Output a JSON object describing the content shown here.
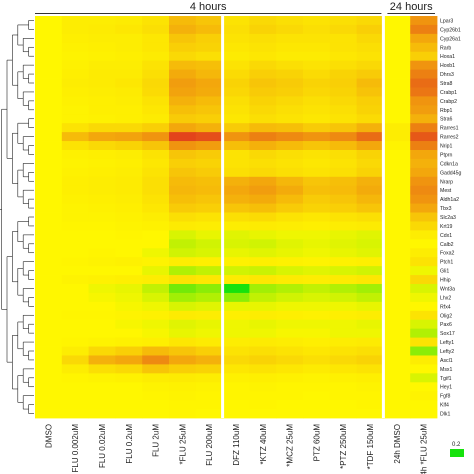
{
  "chart_data": {
    "type": "heatmap",
    "groups": [
      {
        "label": "4 hours",
        "columns": [
          "DMSO",
          "FLU 0.002uM",
          "FLU 0.02uM",
          "FLU 0.2uM",
          "FLU 2uM",
          "*FLU 25uM",
          "FLU 200uM",
          "DFZ 110uM",
          "*KTZ 40uM",
          "*MCZ 25uM",
          "PTZ 60uM",
          "*PTZ 250uM",
          "*TDF 150uM"
        ]
      },
      {
        "label": "24 hours",
        "columns": [
          "24h DMSO",
          "24h *FLU 25uM"
        ]
      }
    ],
    "columns": [
      "DMSO",
      "FLU 0.002uM",
      "FLU 0.02uM",
      "FLU 0.2uM",
      "FLU 2uM",
      "*FLU 25uM",
      "FLU 200uM",
      "DFZ 110uM",
      "*KTZ 40uM",
      "*MCZ 25uM",
      "PTZ 60uM",
      "*PTZ 250uM",
      "*TDF 150uM",
      "24h DMSO",
      "24h *FLU 25uM"
    ],
    "row_labels": [
      "Lpar3",
      "Cyp26b1",
      "Cyp26a1",
      "Rarb",
      "Hoxa1",
      "Hoxb1",
      "Dhrs3",
      "Stra8",
      "Crabp1",
      "Crabp2",
      "Rbp1",
      "Stra6",
      "Rarres1",
      "Rarres2",
      "Nrip1",
      "Ptprn",
      "Cdkn1a",
      "Gadd45g",
      "Nrarp",
      "Mest",
      "Aldh1a2",
      "Tbx3",
      "Slc2a3",
      "Krt19",
      "Cdx1",
      "Calb2",
      "Foxa2",
      "Ptch1",
      "Gli1",
      "Hhip",
      "Wnt3a",
      "Lhx2",
      "Rfx4",
      "Olig2",
      "Pax6",
      "Sox17",
      "Lefty1",
      "Lefty2",
      "Ascl1",
      "Msx1",
      "Tgif1",
      "Hey1",
      "Fgf8",
      "Klf4",
      "Dlk1"
    ],
    "legend": {
      "value_label": "0.2",
      "low_color": "#16e20d",
      "mid_color": "#fff700",
      "high_color": "#e0301e"
    },
    "values": [
      [
        0.0,
        0.05,
        0.05,
        0.06,
        0.1,
        0.3,
        0.25,
        0.1,
        0.15,
        0.12,
        0.1,
        0.12,
        0.15,
        0.0,
        0.5
      ],
      [
        0.0,
        0.05,
        0.06,
        0.08,
        0.12,
        0.35,
        0.3,
        0.12,
        0.18,
        0.15,
        0.12,
        0.15,
        0.2,
        0.0,
        0.6
      ],
      [
        0.0,
        0.04,
        0.05,
        0.05,
        0.08,
        0.25,
        0.2,
        0.1,
        0.12,
        0.1,
        0.1,
        0.1,
        0.15,
        0.0,
        0.4
      ],
      [
        0.0,
        0.03,
        0.04,
        0.05,
        0.08,
        0.2,
        0.18,
        0.08,
        0.1,
        0.08,
        0.08,
        0.1,
        0.12,
        0.0,
        0.3
      ],
      [
        0.0,
        0.02,
        0.03,
        0.04,
        0.06,
        0.15,
        0.12,
        0.06,
        0.08,
        0.06,
        0.06,
        0.08,
        0.1,
        0.0,
        0.2
      ],
      [
        0.0,
        0.03,
        0.05,
        0.05,
        0.1,
        0.3,
        0.28,
        0.1,
        0.15,
        0.12,
        0.1,
        0.12,
        0.15,
        0.0,
        0.5
      ],
      [
        0.0,
        0.04,
        0.06,
        0.06,
        0.12,
        0.38,
        0.32,
        0.14,
        0.2,
        0.18,
        0.14,
        0.18,
        0.22,
        0.0,
        0.6
      ],
      [
        0.0,
        0.05,
        0.06,
        0.08,
        0.15,
        0.45,
        0.4,
        0.18,
        0.25,
        0.22,
        0.18,
        0.2,
        0.3,
        0.0,
        0.7
      ],
      [
        0.0,
        0.04,
        0.05,
        0.06,
        0.14,
        0.42,
        0.38,
        0.16,
        0.22,
        0.2,
        0.16,
        0.18,
        0.26,
        0.0,
        0.65
      ],
      [
        0.0,
        0.03,
        0.04,
        0.05,
        0.1,
        0.35,
        0.3,
        0.12,
        0.18,
        0.15,
        0.12,
        0.15,
        0.2,
        0.0,
        0.5
      ],
      [
        0.0,
        0.02,
        0.04,
        0.04,
        0.08,
        0.28,
        0.25,
        0.1,
        0.15,
        0.12,
        0.1,
        0.12,
        0.18,
        0.0,
        0.45
      ],
      [
        0.0,
        0.02,
        0.03,
        0.04,
        0.06,
        0.22,
        0.2,
        0.08,
        0.12,
        0.1,
        0.08,
        0.1,
        0.14,
        0.0,
        0.35
      ],
      [
        0.0,
        0.1,
        0.15,
        0.15,
        0.2,
        0.4,
        0.35,
        0.22,
        0.3,
        0.28,
        0.22,
        0.25,
        0.35,
        0.05,
        0.6
      ],
      [
        0.0,
        0.3,
        0.4,
        0.42,
        0.5,
        0.9,
        0.85,
        0.5,
        0.6,
        0.55,
        0.5,
        0.55,
        0.7,
        0.05,
        0.8
      ],
      [
        0.0,
        0.1,
        0.15,
        0.18,
        0.25,
        0.5,
        0.45,
        0.28,
        0.35,
        0.3,
        0.25,
        0.3,
        0.4,
        0.02,
        0.6
      ],
      [
        0.0,
        0.03,
        0.04,
        0.05,
        0.1,
        0.25,
        0.22,
        0.1,
        0.15,
        0.12,
        0.1,
        0.12,
        0.18,
        0.0,
        0.4
      ],
      [
        0.0,
        0.02,
        0.03,
        0.04,
        0.08,
        0.2,
        0.18,
        0.1,
        0.12,
        0.1,
        0.08,
        0.1,
        0.15,
        0.0,
        0.35
      ],
      [
        0.0,
        0.03,
        0.04,
        0.05,
        0.1,
        0.25,
        0.22,
        0.12,
        0.15,
        0.12,
        0.1,
        0.12,
        0.18,
        0.0,
        0.4
      ],
      [
        0.0,
        0.04,
        0.05,
        0.06,
        0.12,
        0.3,
        0.28,
        0.35,
        0.4,
        0.32,
        0.25,
        0.28,
        0.35,
        0.0,
        0.5
      ],
      [
        0.0,
        0.04,
        0.05,
        0.06,
        0.12,
        0.32,
        0.3,
        0.4,
        0.45,
        0.38,
        0.28,
        0.3,
        0.38,
        0.0,
        0.55
      ],
      [
        0.0,
        0.03,
        0.04,
        0.05,
        0.1,
        0.28,
        0.25,
        0.35,
        0.38,
        0.3,
        0.22,
        0.25,
        0.32,
        0.0,
        0.5
      ],
      [
        0.0,
        0.02,
        0.03,
        0.04,
        0.08,
        0.22,
        0.2,
        0.25,
        0.28,
        0.22,
        0.18,
        0.2,
        0.25,
        0.0,
        0.4
      ],
      [
        0.0,
        0.02,
        0.02,
        0.03,
        0.05,
        0.12,
        0.1,
        0.12,
        0.14,
        0.1,
        0.08,
        0.1,
        0.12,
        0.0,
        0.25
      ],
      [
        0.0,
        0.01,
        0.01,
        0.02,
        0.03,
        0.06,
        0.05,
        0.05,
        0.06,
        0.05,
        0.04,
        0.05,
        0.06,
        0.0,
        0.15
      ],
      [
        0.0,
        0.0,
        0.0,
        0.01,
        0.0,
        -0.05,
        -0.03,
        -0.04,
        -0.03,
        -0.02,
        -0.02,
        -0.03,
        -0.04,
        0.0,
        0.05
      ],
      [
        0.0,
        0.0,
        0.0,
        0.0,
        0.0,
        -0.08,
        -0.06,
        -0.05,
        -0.06,
        -0.04,
        -0.03,
        -0.04,
        -0.05,
        0.0,
        0.0
      ],
      [
        0.0,
        0.0,
        0.01,
        0.0,
        -0.02,
        -0.06,
        -0.05,
        -0.03,
        -0.04,
        -0.03,
        -0.02,
        -0.03,
        -0.04,
        0.0,
        0.05
      ],
      [
        0.0,
        0.01,
        0.02,
        0.03,
        0.02,
        0.05,
        0.04,
        0.03,
        0.04,
        0.03,
        0.02,
        0.03,
        0.04,
        0.0,
        0.1
      ],
      [
        0.0,
        0.0,
        0.0,
        0.0,
        -0.03,
        -0.1,
        -0.08,
        -0.06,
        -0.07,
        -0.05,
        -0.04,
        -0.05,
        -0.06,
        0.0,
        -0.02
      ],
      [
        0.0,
        0.02,
        0.03,
        0.04,
        0.05,
        0.1,
        0.08,
        0.06,
        0.08,
        0.06,
        0.05,
        0.06,
        0.08,
        0.0,
        0.15
      ],
      [
        0.0,
        0.0,
        -0.02,
        -0.03,
        -0.08,
        -0.18,
        -0.15,
        -0.3,
        -0.12,
        -0.1,
        -0.08,
        -0.1,
        -0.12,
        0.0,
        -0.05
      ],
      [
        0.0,
        0.0,
        -0.01,
        -0.02,
        -0.05,
        -0.12,
        -0.1,
        -0.15,
        -0.08,
        -0.06,
        -0.05,
        -0.06,
        -0.08,
        0.0,
        -0.02
      ],
      [
        0.0,
        0.0,
        0.0,
        -0.01,
        -0.02,
        -0.05,
        -0.04,
        -0.03,
        -0.03,
        -0.02,
        -0.02,
        -0.02,
        -0.03,
        0.0,
        0.0
      ],
      [
        0.0,
        0.01,
        0.01,
        0.02,
        0.03,
        0.06,
        0.05,
        0.04,
        0.05,
        0.04,
        0.03,
        0.04,
        0.05,
        0.0,
        0.1
      ],
      [
        0.0,
        0.0,
        0.0,
        -0.01,
        -0.02,
        -0.04,
        -0.03,
        -0.02,
        -0.03,
        -0.02,
        -0.02,
        -0.02,
        -0.03,
        0.0,
        -0.05
      ],
      [
        0.0,
        0.0,
        0.0,
        0.0,
        -0.01,
        -0.03,
        -0.02,
        -0.02,
        -0.02,
        -0.01,
        -0.01,
        -0.02,
        -0.02,
        0.0,
        -0.1
      ],
      [
        0.0,
        0.01,
        0.02,
        0.03,
        0.04,
        0.08,
        0.06,
        0.05,
        0.06,
        0.05,
        0.04,
        0.05,
        0.06,
        0.0,
        0.1
      ],
      [
        0.0,
        0.05,
        0.15,
        0.2,
        0.3,
        0.25,
        0.2,
        0.1,
        0.12,
        0.1,
        0.08,
        0.1,
        0.12,
        0.0,
        -0.15
      ],
      [
        0.0,
        0.15,
        0.35,
        0.4,
        0.55,
        0.4,
        0.35,
        0.15,
        0.18,
        0.15,
        0.12,
        0.15,
        0.18,
        0.0,
        0.05
      ],
      [
        0.0,
        0.05,
        0.12,
        0.15,
        0.25,
        0.2,
        0.18,
        0.08,
        0.1,
        0.08,
        0.06,
        0.08,
        0.1,
        0.0,
        0.0
      ],
      [
        0.0,
        0.01,
        0.02,
        0.03,
        0.05,
        0.06,
        0.05,
        0.03,
        0.04,
        0.03,
        0.02,
        0.03,
        0.04,
        0.0,
        -0.05
      ],
      [
        0.0,
        0.0,
        0.0,
        0.0,
        0.02,
        0.03,
        0.02,
        0.01,
        0.02,
        0.01,
        0.01,
        0.01,
        0.02,
        0.0,
        0.0
      ],
      [
        0.0,
        0.0,
        0.0,
        0.0,
        0.01,
        0.02,
        0.01,
        0.01,
        0.01,
        0.01,
        0.0,
        0.01,
        0.01,
        0.0,
        0.02
      ],
      [
        0.0,
        0.0,
        0.0,
        0.0,
        0.0,
        0.01,
        0.01,
        0.0,
        0.01,
        0.0,
        0.0,
        0.0,
        0.01,
        0.0,
        0.0
      ],
      [
        0.0,
        0.0,
        0.0,
        0.0,
        0.0,
        0.01,
        0.0,
        0.0,
        0.0,
        0.0,
        0.0,
        0.0,
        0.0,
        0.0,
        0.0
      ]
    ]
  }
}
